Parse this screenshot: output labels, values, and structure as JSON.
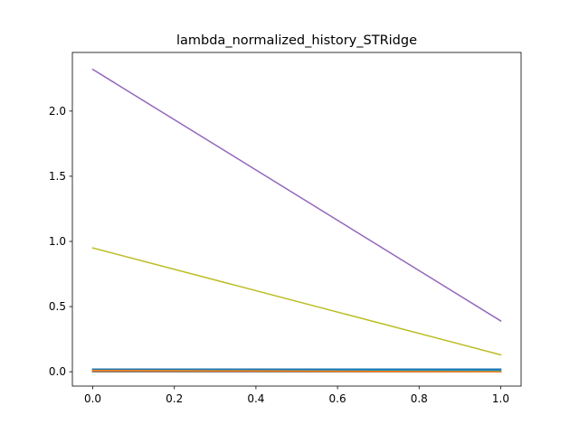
{
  "chart_data": {
    "type": "line",
    "title": "lambda_normalized_history_STRidge",
    "xlabel": "",
    "ylabel": "",
    "xlim": [
      -0.05,
      1.05
    ],
    "ylim": [
      -0.11,
      2.45
    ],
    "x_ticks": [
      0.0,
      0.2,
      0.4,
      0.6,
      0.8,
      1.0
    ],
    "x_tick_labels": [
      "0.0",
      "0.2",
      "0.4",
      "0.6",
      "0.8",
      "1.0"
    ],
    "y_ticks": [
      0.0,
      0.5,
      1.0,
      1.5,
      2.0
    ],
    "y_tick_labels": [
      "0.0",
      "0.5",
      "1.0",
      "1.5",
      "2.0"
    ],
    "grid": false,
    "x": [
      0,
      1
    ],
    "series": [
      {
        "color": "#1f77b4",
        "values": [
          0.02,
          0.02
        ]
      },
      {
        "color": "#ff7f0e",
        "values": [
          0.015,
          0.0
        ]
      },
      {
        "color": "#2ca02c",
        "values": [
          0.0,
          0.0
        ]
      },
      {
        "color": "#d62728",
        "values": [
          0.0,
          0.0
        ]
      },
      {
        "color": "#9467bd",
        "values": [
          2.32,
          0.39
        ]
      },
      {
        "color": "#8c564b",
        "values": [
          0.0,
          0.0
        ]
      },
      {
        "color": "#e377c2",
        "values": [
          0.005,
          0.002
        ]
      },
      {
        "color": "#7f7f7f",
        "values": [
          0.0,
          0.0
        ]
      },
      {
        "color": "#bcbd22",
        "values": [
          0.95,
          0.13
        ]
      },
      {
        "color": "#17becf",
        "values": [
          0.01,
          0.008
        ]
      },
      {
        "color": "#1f77b4",
        "values": [
          0.02,
          0.015
        ]
      },
      {
        "color": "#ff7f0e",
        "values": [
          0.01,
          0.0
        ]
      }
    ]
  }
}
